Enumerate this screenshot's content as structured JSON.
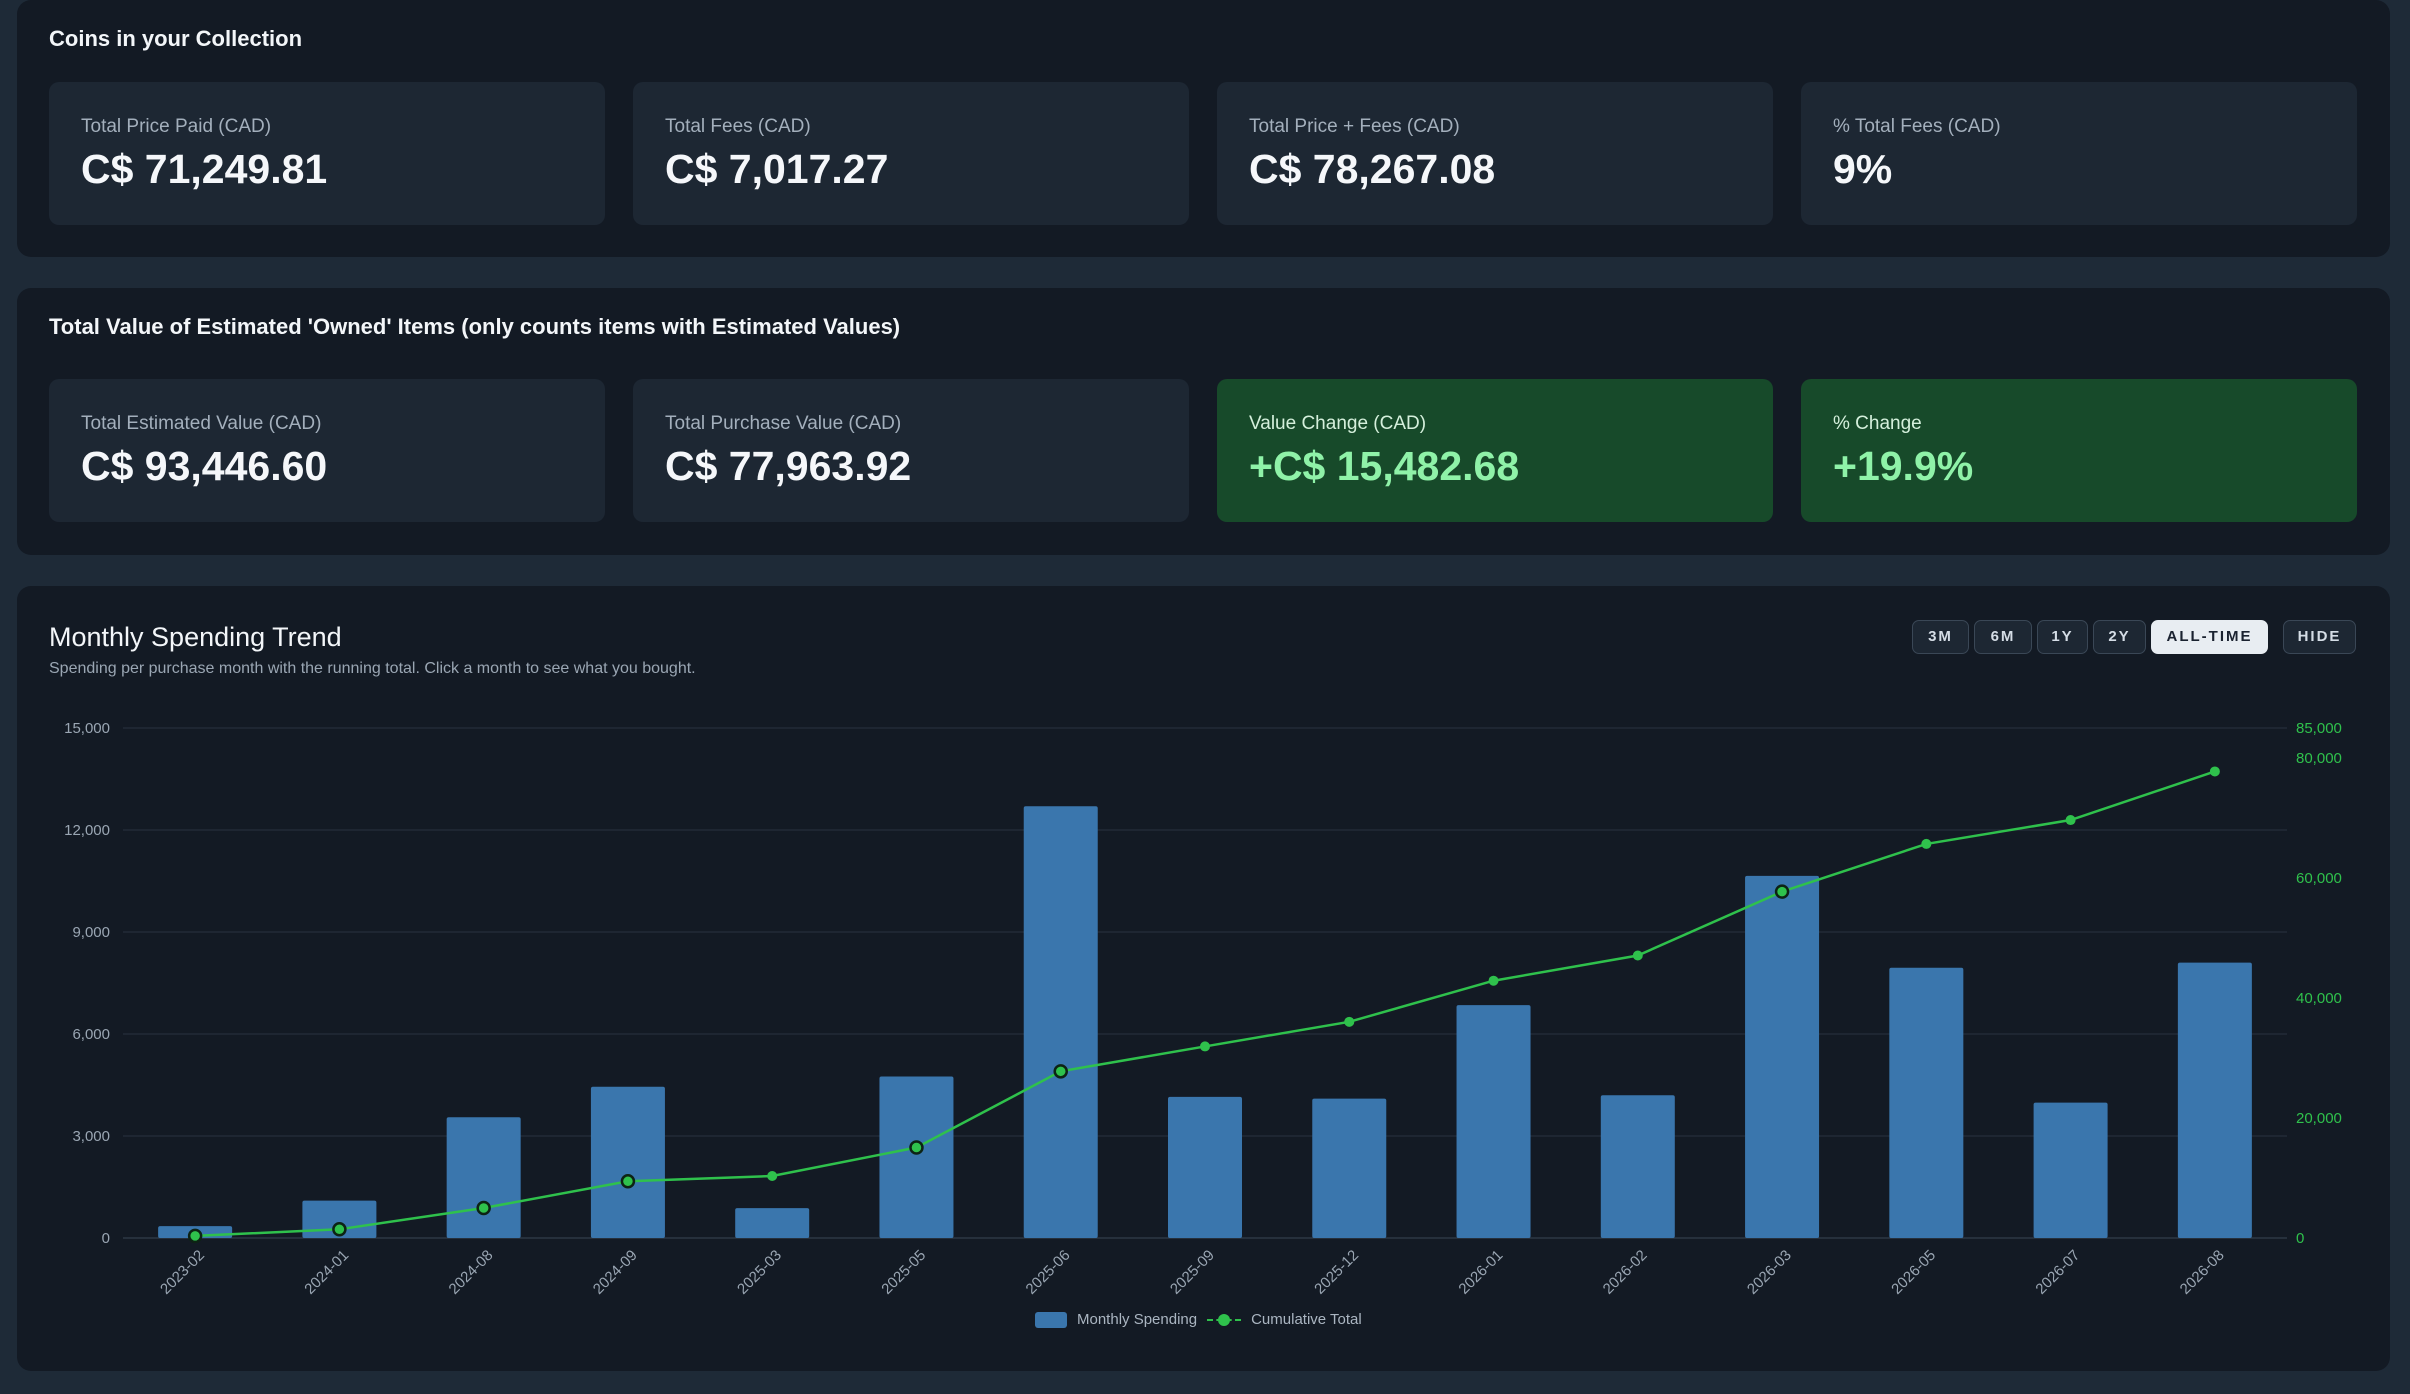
{
  "coins": {
    "title": "Coins in your Collection",
    "cards": [
      {
        "label": "Total Price Paid (CAD)",
        "value": "C$ 71,249.81"
      },
      {
        "label": "Total Fees (CAD)",
        "value": "C$ 7,017.27"
      },
      {
        "label": "Total Price + Fees (CAD)",
        "value": "C$ 78,267.08"
      },
      {
        "label": "% Total Fees (CAD)",
        "value": "9%"
      }
    ]
  },
  "owned": {
    "title": "Total Value of Estimated 'Owned' Items (only counts items with Estimated Values)",
    "cards": [
      {
        "label": "Total Estimated Value (CAD)",
        "value": "C$ 93,446.60"
      },
      {
        "label": "Total Purchase Value (CAD)",
        "value": "C$ 77,963.92"
      },
      {
        "label": "Value Change (CAD)",
        "value": "+C$ 15,482.68"
      },
      {
        "label": "% Change",
        "value": "+19.9%"
      }
    ]
  },
  "trend": {
    "title": "Monthly Spending Trend",
    "subtitle": "Spending per purchase month with the running total. Click a month to see what you bought.",
    "ranges": [
      {
        "label": "3M",
        "active": false
      },
      {
        "label": "6M",
        "active": false
      },
      {
        "label": "1Y",
        "active": false
      },
      {
        "label": "2Y",
        "active": false
      },
      {
        "label": "ALL-TIME",
        "active": true
      }
    ],
    "hide_label": "HIDE",
    "legend": {
      "bars": "Monthly Spending",
      "line": "Cumulative Total"
    }
  },
  "colors": {
    "bar": "#3a76ad",
    "line": "#2fc14c",
    "left_axis": "#9aa6b3",
    "right_axis": "#2fc14c",
    "grid": "#2a3340"
  },
  "chart_data": {
    "type": "bar",
    "categories": [
      "2023-02",
      "2024-01",
      "2024-08",
      "2024-09",
      "2025-03",
      "2025-05",
      "2025-06",
      "2025-09",
      "2025-12",
      "2026-01",
      "2026-02",
      "2026-03",
      "2026-05",
      "2026-07",
      "2026-08"
    ],
    "series": [
      {
        "name": "Monthly Spending",
        "type": "bar",
        "axis": "left",
        "values": [
          350,
          1100,
          3550,
          4450,
          880,
          4750,
          12700,
          4150,
          4100,
          6850,
          4200,
          10650,
          7950,
          3980,
          8100
        ]
      },
      {
        "name": "Cumulative Total",
        "type": "line",
        "axis": "right",
        "values": [
          350,
          1450,
          5000,
          9450,
          10330,
          15080,
          27780,
          31930,
          36030,
          42880,
          47080,
          57730,
          65680,
          69660,
          77760
        ]
      }
    ],
    "left_axis": {
      "min": 0,
      "max": 15000,
      "ticks": [
        0,
        3000,
        6000,
        9000,
        12000,
        15000
      ],
      "tick_labels": [
        "0",
        "3,000",
        "6,000",
        "9,000",
        "12,000",
        "15,000"
      ]
    },
    "right_axis": {
      "min": 0,
      "max": 85000,
      "ticks": [
        0,
        20000,
        40000,
        60000,
        80000,
        85000
      ],
      "tick_labels": [
        "0",
        "20,000",
        "40,000",
        "60,000",
        "80,000",
        "85,000"
      ]
    },
    "highlighted_points": [
      0,
      1,
      2,
      3,
      5,
      6,
      11
    ],
    "grid": true,
    "legend_position": "bottom-center"
  }
}
